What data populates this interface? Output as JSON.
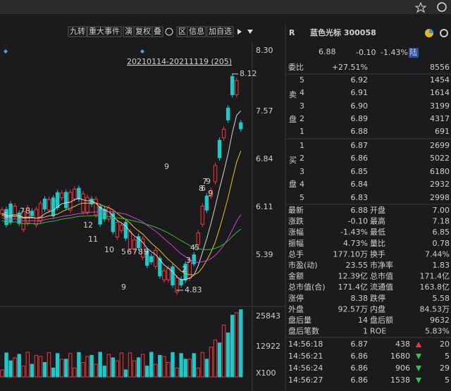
{
  "toolbar": {
    "items": [
      "九转",
      "重大事件",
      "演",
      "复权",
      "叠",
      "区",
      "信息",
      "加自选"
    ]
  },
  "chart": {
    "range_label": "20210114-20211119 (205)",
    "high_label": "8.12",
    "low_label": "4.83",
    "price_axis": [
      "8.30",
      "7.57",
      "6.84",
      "6.11",
      "5.39"
    ],
    "volume_axis": [
      "25843",
      "12922",
      "X100"
    ],
    "td_labels": [
      "9",
      "5",
      "7",
      "8",
      "12",
      "11",
      "10",
      "5",
      "6",
      "7",
      "8",
      "9",
      "9",
      "2",
      "3",
      "4",
      "5",
      "7",
      "8",
      "6",
      "9",
      "9"
    ]
  },
  "quote": {
    "badge": "R",
    "name": "蓝色光标 300058",
    "price": "6.88",
    "change": "-0.10",
    "change_pct": "-1.43%",
    "tag": "陆"
  },
  "order_book": {
    "ratio_label": "委比",
    "ratio": "+27.51%",
    "diff": "8556",
    "sell_label": [
      "卖",
      "盘"
    ],
    "buy_label": [
      "买",
      "盘"
    ],
    "sell": [
      [
        "5",
        "6.92",
        "1454"
      ],
      [
        "4",
        "6.91",
        "1614"
      ],
      [
        "3",
        "6.90",
        "3199"
      ],
      [
        "2",
        "6.89",
        "4317"
      ],
      [
        "1",
        "6.88",
        "691"
      ]
    ],
    "buy": [
      [
        "1",
        "6.87",
        "2699"
      ],
      [
        "2",
        "6.86",
        "5022"
      ],
      [
        "3",
        "6.85",
        "6180"
      ],
      [
        "4",
        "6.84",
        "2932"
      ],
      [
        "5",
        "6.83",
        "2998"
      ]
    ]
  },
  "stats": [
    [
      "最新",
      "6.88",
      "开盘",
      "7.00"
    ],
    [
      "涨跌",
      "-0.10",
      "最高",
      "7.18"
    ],
    [
      "涨幅",
      "-1.43%",
      "最低",
      "6.85"
    ],
    [
      "振幅",
      "4.73%",
      "量比",
      "0.78"
    ],
    [
      "总手",
      "177.10万",
      "换手",
      "7.44%"
    ],
    [
      "市盈(动)",
      "23.55",
      "市净率",
      "1.83"
    ],
    [
      "金额",
      "12.39亿",
      "总市值",
      "171.4亿"
    ],
    [
      "总市值(合)",
      "171.4亿",
      "流通值",
      "163.8亿"
    ],
    [
      "涨停",
      "8.38",
      "跌停",
      "5.58"
    ],
    [
      "外盘",
      "92.57万",
      "内盘",
      "84.53万"
    ],
    [
      "盘后量",
      "14",
      "盘后额",
      "9632"
    ],
    [
      "盘后笔数",
      "1",
      "ROE",
      "5.83%"
    ]
  ],
  "ticks": [
    [
      "14:56:18",
      "6.87",
      "438",
      "20"
    ],
    [
      "14:56:21",
      "6.86",
      "1680",
      "5"
    ],
    [
      "14:56:24",
      "6.86",
      "906",
      "29"
    ],
    [
      "14:56:27",
      "6.86",
      "1538",
      "5"
    ]
  ]
}
